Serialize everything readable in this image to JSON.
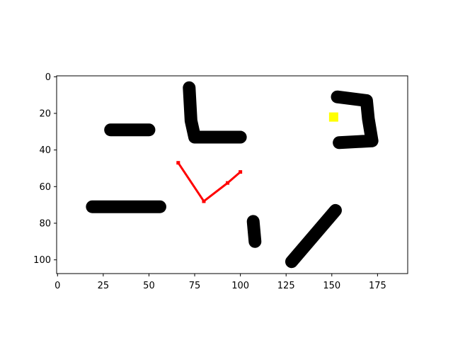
{
  "chart_data": {
    "type": "scatter",
    "title": "",
    "xlabel": "",
    "ylabel": "",
    "xlim": [
      -0.5,
      191.5
    ],
    "ylim": [
      107.5,
      -0.5
    ],
    "y_inverted": true,
    "grid": false,
    "legend": "none",
    "x_ticks": [
      0,
      25,
      50,
      75,
      100,
      125,
      150,
      175
    ],
    "y_ticks": [
      0,
      20,
      40,
      60,
      80,
      100
    ],
    "x_tick_labels": [
      "0",
      "25",
      "50",
      "75",
      "100",
      "125",
      "150",
      "175"
    ],
    "y_tick_labels": [
      "0",
      "20",
      "40",
      "60",
      "80",
      "100"
    ],
    "obstacles": {
      "color": "#000000",
      "strokes": [
        [
          [
            29,
            29
          ],
          [
            50,
            29
          ]
        ],
        [
          [
            19,
            71
          ],
          [
            56,
            71
          ]
        ],
        [
          [
            72,
            6
          ],
          [
            73,
            24
          ],
          [
            75,
            33
          ],
          [
            100,
            33
          ]
        ],
        [
          [
            107,
            79
          ],
          [
            108,
            90
          ]
        ],
        [
          [
            128,
            101
          ],
          [
            152,
            73
          ]
        ],
        [
          [
            153,
            11
          ],
          [
            169,
            13
          ],
          [
            170,
            23
          ],
          [
            172,
            35
          ],
          [
            154,
            36
          ]
        ]
      ]
    },
    "path": {
      "color": "#ff0000",
      "points": [
        [
          66,
          47
        ],
        [
          80,
          68
        ],
        [
          93,
          58
        ],
        [
          100,
          52
        ]
      ]
    },
    "goal": {
      "color": "#ffff00",
      "x": 151,
      "y": 22
    }
  }
}
